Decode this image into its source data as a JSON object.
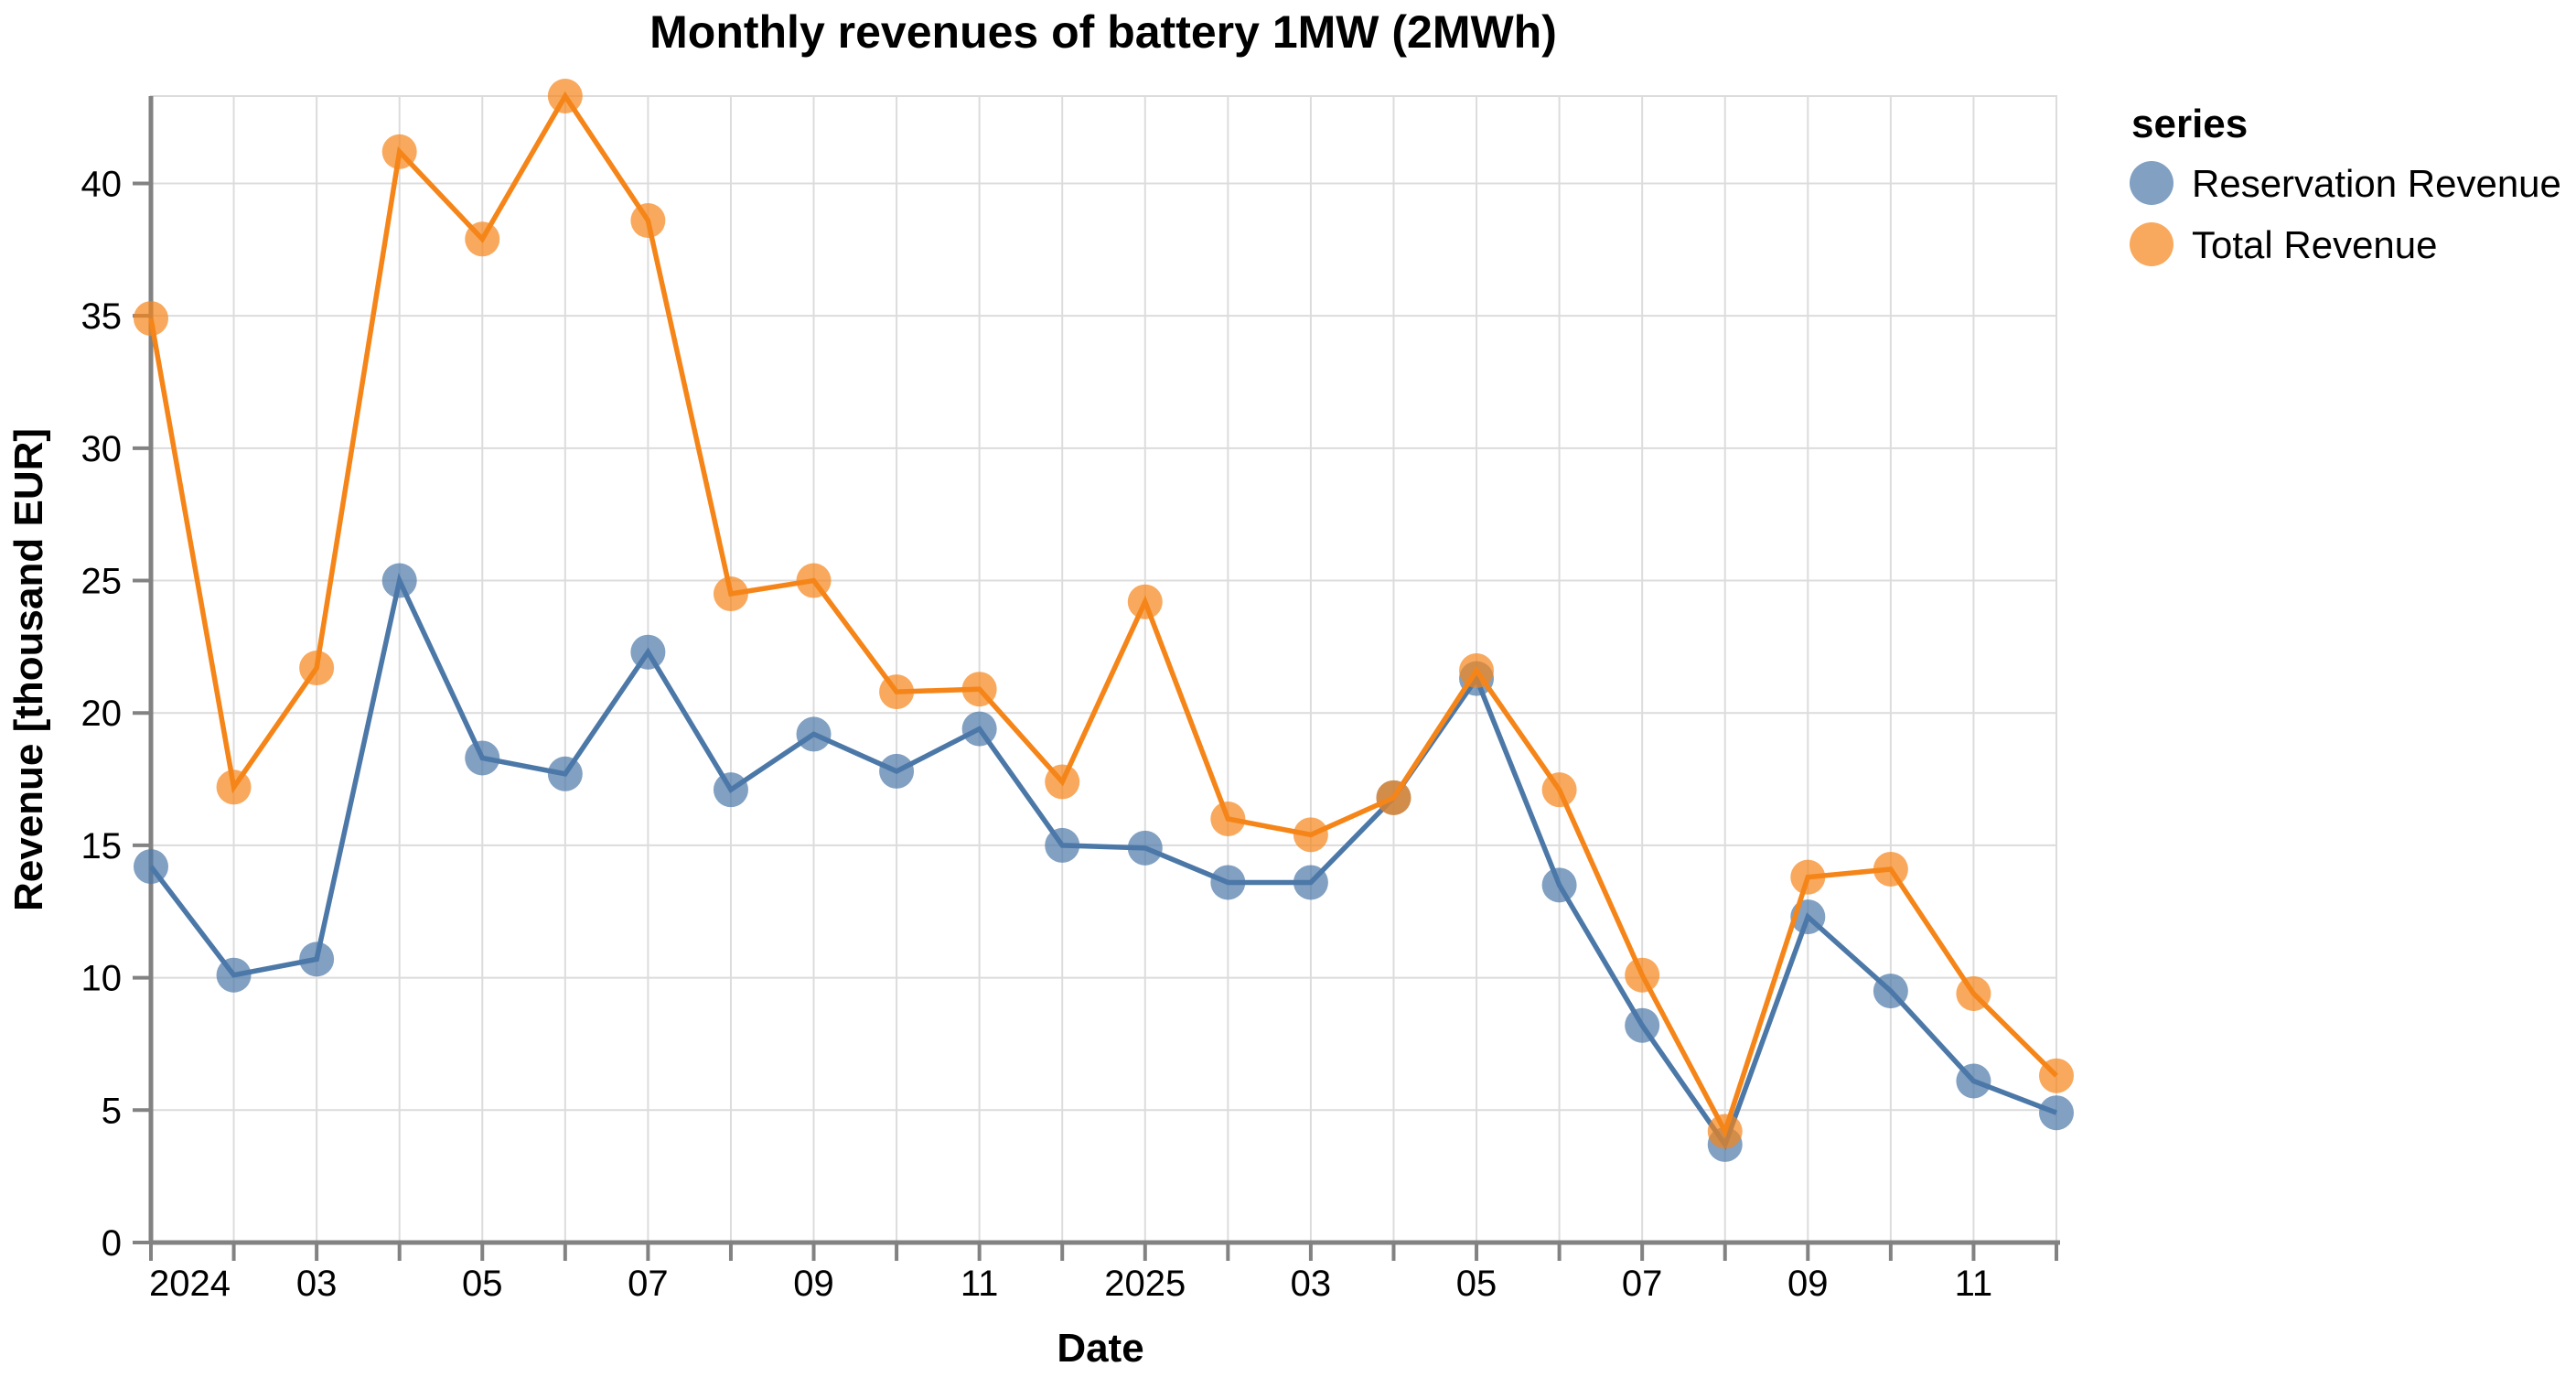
{
  "title": "Monthly revenues of battery 1MW (2MWh)",
  "chart_data": {
    "type": "line",
    "title": "Monthly revenues of battery 1MW (2MWh)",
    "xlabel": "Date",
    "ylabel": "Revenue [thousand EUR]",
    "grid": true,
    "x": [
      "2024-01",
      "2024-02",
      "2024-03",
      "2024-04",
      "2024-05",
      "2024-06",
      "2024-07",
      "2024-08",
      "2024-09",
      "2024-10",
      "2024-11",
      "2024-12",
      "2025-01",
      "2025-02",
      "2025-03",
      "2025-04",
      "2025-05",
      "2025-06",
      "2025-07",
      "2025-08",
      "2025-09",
      "2025-10",
      "2025-11",
      "2025-12"
    ],
    "x_tick_labels": [
      {
        "index": 0,
        "label": "2024"
      },
      {
        "index": 2,
        "label": "03"
      },
      {
        "index": 4,
        "label": "05"
      },
      {
        "index": 6,
        "label": "07"
      },
      {
        "index": 8,
        "label": "09"
      },
      {
        "index": 10,
        "label": "11"
      },
      {
        "index": 12,
        "label": "2025"
      },
      {
        "index": 14,
        "label": "03"
      },
      {
        "index": 16,
        "label": "05"
      },
      {
        "index": 18,
        "label": "07"
      },
      {
        "index": 20,
        "label": "09"
      },
      {
        "index": 22,
        "label": "11"
      }
    ],
    "y_ticks": [
      0,
      5,
      10,
      15,
      20,
      25,
      30,
      35,
      40
    ],
    "ylim": [
      0,
      43.3
    ],
    "legend": {
      "title": "series",
      "position": "right",
      "entries": [
        {
          "label": "Reservation Revenue",
          "color": "#4c78a8"
        },
        {
          "label": "Total Revenue",
          "color": "#f58518"
        }
      ]
    },
    "series": [
      {
        "name": "Reservation Revenue",
        "color": "#4c78a8",
        "values": [
          14.2,
          10.1,
          10.7,
          25.0,
          18.3,
          17.7,
          22.3,
          17.1,
          19.2,
          17.8,
          19.4,
          15.0,
          14.9,
          13.6,
          13.6,
          16.8,
          21.3,
          13.5,
          8.2,
          3.7,
          12.3,
          9.5,
          6.1,
          4.9
        ]
      },
      {
        "name": "Total Revenue",
        "color": "#f58518",
        "values": [
          34.9,
          17.2,
          21.7,
          41.2,
          37.9,
          43.3,
          38.6,
          24.5,
          25.0,
          20.8,
          20.9,
          17.4,
          24.2,
          16.0,
          15.4,
          16.8,
          21.6,
          17.1,
          10.1,
          4.2,
          13.8,
          14.1,
          9.4,
          6.3
        ]
      }
    ]
  },
  "colors": {
    "gridline": "#dcdcdc",
    "view_border": "#dcdcdc",
    "axis": "#828282",
    "text": "#000000",
    "background": "#ffffff"
  }
}
